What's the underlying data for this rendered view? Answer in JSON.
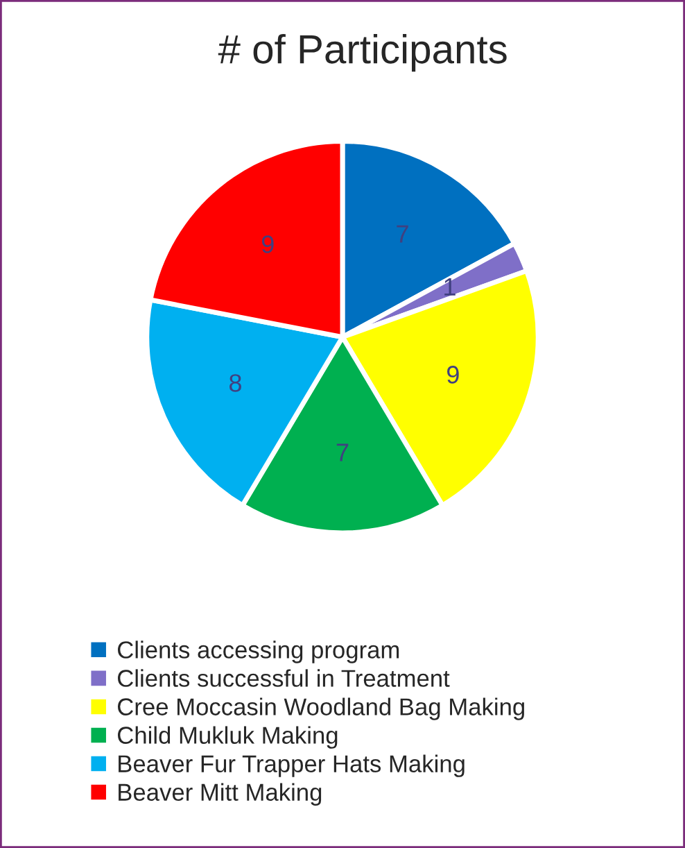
{
  "chart_data": {
    "type": "pie",
    "title": "# of Participants",
    "categories": [
      "Clients accessing program",
      "Clients successful in Treatment",
      "Cree Moccasin Woodland Bag Making",
      "Child Mukluk Making",
      "Beaver Fur Trapper Hats Making",
      "Beaver Mitt Making"
    ],
    "values": [
      7,
      1,
      9,
      7,
      8,
      9
    ],
    "colors": [
      "#0070c0",
      "#7f6fc8",
      "#ffff00",
      "#00b050",
      "#00b0f0",
      "#ff0000"
    ],
    "data_labels": true,
    "legend": "bottom"
  }
}
